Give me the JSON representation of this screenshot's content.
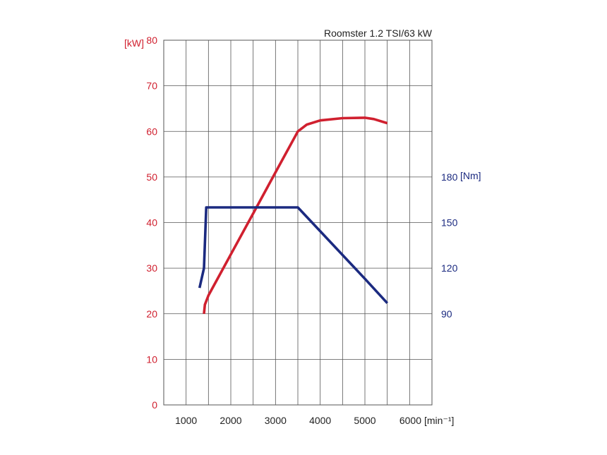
{
  "chart_data": {
    "type": "line",
    "title": "Roomster 1.2 TSI/63 kW",
    "x_unit": "[min⁻¹]",
    "xlim": [
      500,
      6500
    ],
    "x_ticks": [
      1000,
      2000,
      3000,
      4000,
      5000,
      6000
    ],
    "y_left": {
      "unit": "[kW]",
      "ylim": [
        0,
        80
      ],
      "ticks": [
        0,
        10,
        20,
        30,
        40,
        50,
        60,
        70,
        80
      ],
      "color": "#d0202f"
    },
    "y_right": {
      "unit": "[Nm]",
      "ticks": [
        90,
        120,
        150,
        180
      ],
      "color": "#1b2a80"
    },
    "grid": true,
    "series": [
      {
        "axis": "left",
        "color": "#d0202f",
        "points": [
          [
            1400,
            20
          ],
          [
            1420,
            22
          ],
          [
            1500,
            24
          ],
          [
            2000,
            33
          ],
          [
            2500,
            42
          ],
          [
            3000,
            51
          ],
          [
            3500,
            60
          ],
          [
            3700,
            61.5
          ],
          [
            4000,
            62.4
          ],
          [
            4500,
            62.9
          ],
          [
            5000,
            63
          ],
          [
            5200,
            62.7
          ],
          [
            5500,
            61.8
          ]
        ]
      },
      {
        "axis": "right",
        "color": "#1b2a80",
        "points": [
          [
            1300,
            107
          ],
          [
            1400,
            120
          ],
          [
            1450,
            160
          ],
          [
            3500,
            160
          ],
          [
            5000,
            113
          ],
          [
            5500,
            97
          ]
        ]
      }
    ]
  }
}
